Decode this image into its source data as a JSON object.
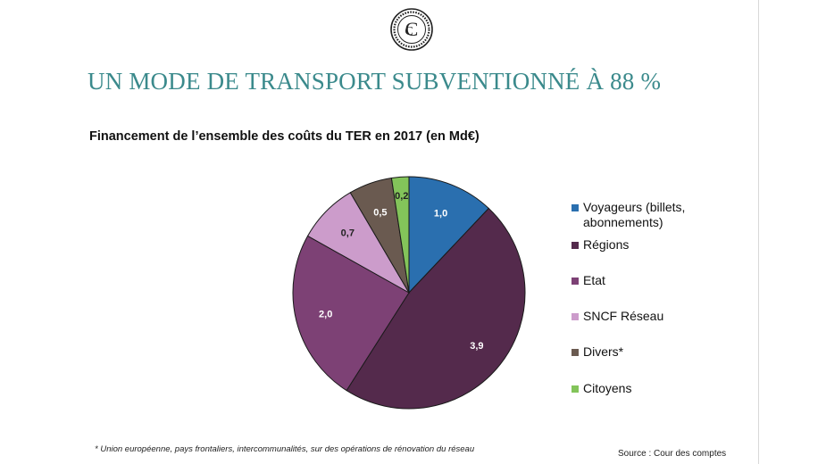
{
  "header": {
    "title": "UN MODE DE TRANSPORT SUBVENTIONNÉ À 88 %"
  },
  "logo": {
    "text": "C",
    "icon": "cour-des-comptes-seal-icon"
  },
  "chart_data": {
    "type": "pie",
    "title": "Financement de l’ensemble des coûts du TER en 2017 (en Md€)",
    "slices": [
      {
        "label": "Voyageurs (billets, abonnements)",
        "value": 1.0,
        "display": "1,0",
        "color": "#2a6faf"
      },
      {
        "label": "Régions",
        "value": 3.9,
        "display": "3,9",
        "color": "#542a4c"
      },
      {
        "label": "Etat",
        "value": 2.0,
        "display": "2,0",
        "color": "#7d4175"
      },
      {
        "label": "SNCF Réseau",
        "value": 0.7,
        "display": "0,7",
        "color": "#cc9ccb"
      },
      {
        "label": "Divers*",
        "value": 0.5,
        "display": "0,5",
        "color": "#6a5a50"
      },
      {
        "label": "Citoyens",
        "value": 0.2,
        "display": "0,2",
        "color": "#83c45a"
      }
    ],
    "legend_position": "right"
  },
  "footnote": "* Union européenne, pays frontaliers, intercommunalités, sur des opérations de rénovation du réseau",
  "source": "Source : Cour des comptes"
}
